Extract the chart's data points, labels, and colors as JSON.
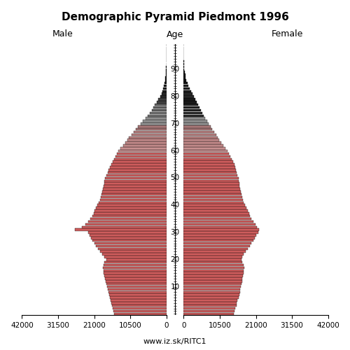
{
  "title": "Demographic Pyramid Piedmont 1996",
  "xlabel_left": "Male",
  "xlabel_right": "Female",
  "xlabel_center": "Age",
  "footer": "www.iz.sk/RITC1",
  "xlim": 42000,
  "ages": [
    0,
    1,
    2,
    3,
    4,
    5,
    6,
    7,
    8,
    9,
    10,
    11,
    12,
    13,
    14,
    15,
    16,
    17,
    18,
    19,
    20,
    21,
    22,
    23,
    24,
    25,
    26,
    27,
    28,
    29,
    30,
    31,
    32,
    33,
    34,
    35,
    36,
    37,
    38,
    39,
    40,
    41,
    42,
    43,
    44,
    45,
    46,
    47,
    48,
    49,
    50,
    51,
    52,
    53,
    54,
    55,
    56,
    57,
    58,
    59,
    60,
    61,
    62,
    63,
    64,
    65,
    66,
    67,
    68,
    69,
    70,
    71,
    72,
    73,
    74,
    75,
    76,
    77,
    78,
    79,
    80,
    81,
    82,
    83,
    84,
    85,
    86,
    87,
    88,
    89,
    90,
    91,
    92,
    93,
    94,
    95,
    96,
    97,
    98,
    99
  ],
  "male": [
    15200,
    15500,
    15700,
    15900,
    16000,
    16200,
    16500,
    16700,
    16900,
    17100,
    17300,
    17500,
    17700,
    17900,
    18000,
    18200,
    18300,
    18400,
    18300,
    18000,
    17500,
    18000,
    18600,
    19200,
    19800,
    20400,
    21000,
    21600,
    22000,
    22300,
    22700,
    26500,
    24500,
    23600,
    22700,
    22100,
    21600,
    21200,
    20800,
    20400,
    20100,
    19700,
    19300,
    19100,
    18900,
    18700,
    18500,
    18300,
    18100,
    18000,
    17900,
    17500,
    17100,
    16800,
    16500,
    16100,
    15700,
    15200,
    14800,
    14400,
    13900,
    13400,
    12600,
    12000,
    11400,
    10900,
    10200,
    9500,
    8800,
    8200,
    7500,
    6800,
    6100,
    5500,
    4900,
    4300,
    3800,
    3300,
    2800,
    2300,
    1800,
    1400,
    1100,
    850,
    650,
    480,
    350,
    240,
    160,
    100,
    55,
    32,
    18,
    9,
    5,
    2,
    1,
    1,
    0,
    0
  ],
  "female": [
    14500,
    14800,
    15000,
    15300,
    15500,
    15700,
    16000,
    16200,
    16400,
    16500,
    16600,
    16800,
    17000,
    17100,
    17200,
    17400,
    17500,
    17600,
    17400,
    17100,
    16800,
    17100,
    17500,
    18000,
    18600,
    19200,
    19700,
    20200,
    20700,
    21200,
    21700,
    22000,
    21400,
    20800,
    20200,
    19700,
    19300,
    19000,
    18600,
    18200,
    17900,
    17500,
    17200,
    17000,
    16800,
    16600,
    16500,
    16300,
    16200,
    16100,
    16000,
    15700,
    15400,
    15200,
    15000,
    14700,
    14400,
    13900,
    13500,
    13100,
    12700,
    12200,
    11500,
    10900,
    10400,
    9900,
    9400,
    8800,
    8300,
    7800,
    7300,
    6800,
    6300,
    5800,
    5400,
    5000,
    4600,
    4200,
    3800,
    3400,
    3000,
    2500,
    2100,
    1700,
    1350,
    1050,
    800,
    620,
    460,
    310,
    190,
    115,
    65,
    35,
    18,
    9,
    4,
    2,
    1,
    0
  ]
}
